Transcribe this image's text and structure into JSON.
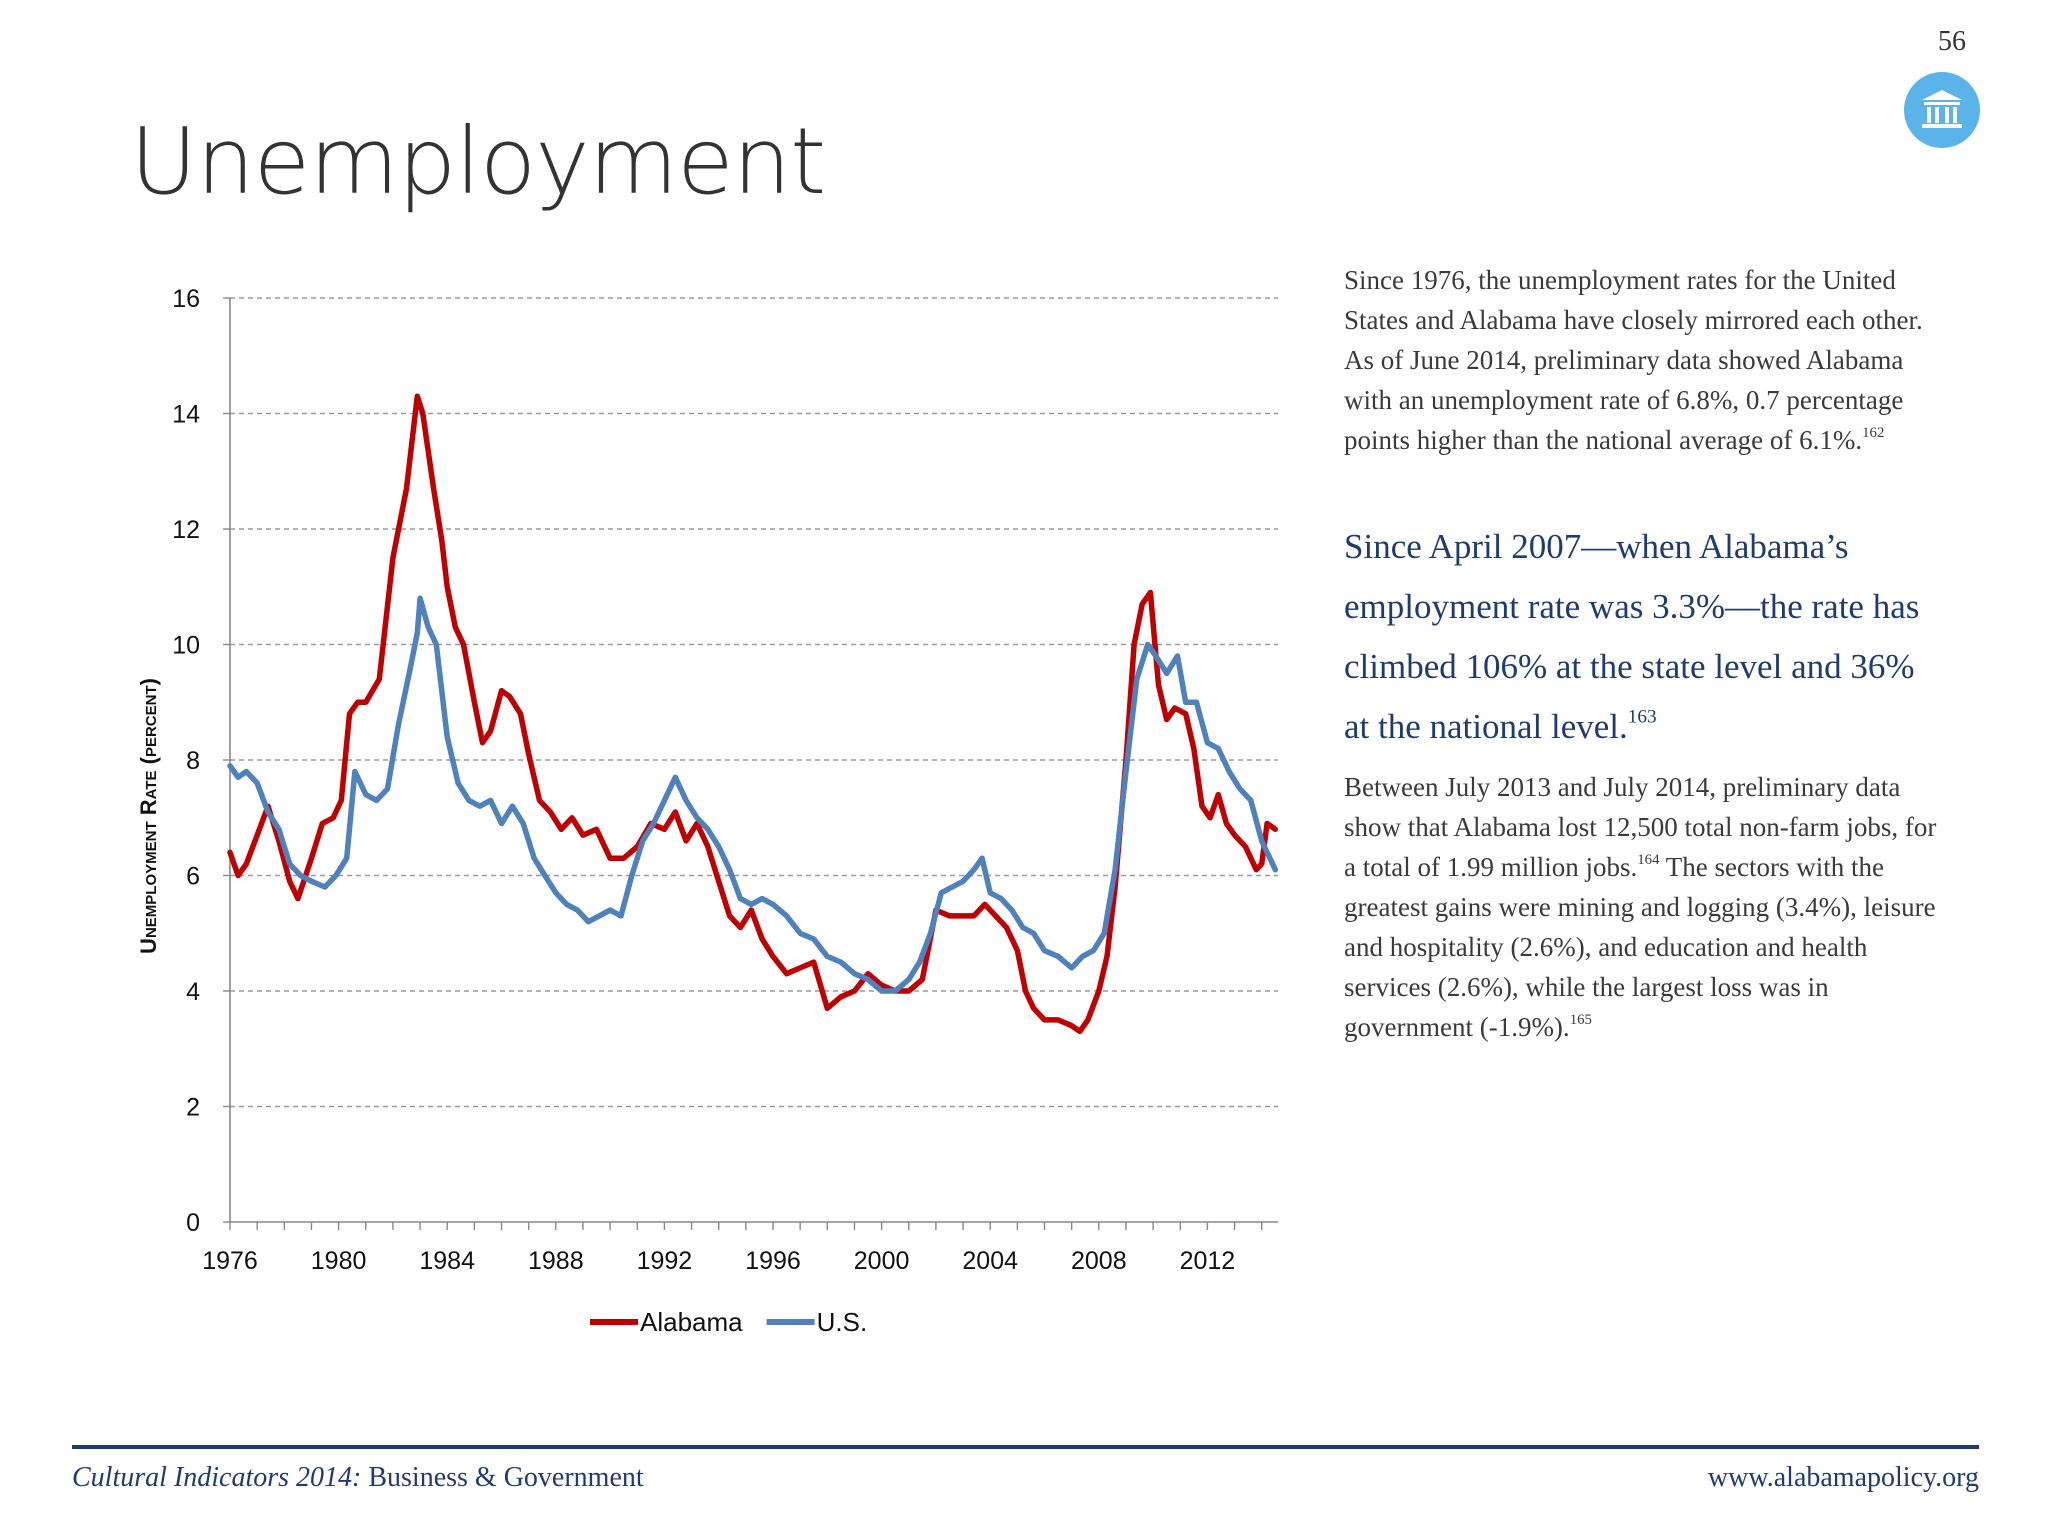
{
  "page": {
    "number": "56"
  },
  "title": "Unemployment",
  "text": {
    "intro": {
      "body": "Since 1976, the unemployment rates for the United States and Alabama have closely mirrored each other. As of June 2014, preliminary data showed Alabama with an unemployment rate of 6.8%, 0.7 percentage points higher than the national average of 6.1%.",
      "ref": "162"
    },
    "callout": {
      "body": "Since April 2007—when Alabama’s employment rate was 3.3%—the rate has climbed 106% at the state level and 36% at the national level.",
      "ref": "163"
    },
    "details": {
      "part1": "Between July 2013 and July 2014, preliminary data show that Alabama lost 12,500 total non-farm jobs, for a total of 1.99 million jobs.",
      "ref1": "164",
      "part2": " The sectors with the greatest gains were mining and logging (3.4%), leisure and hospitality (2.6%), and education and health services (2.6%), while the largest loss was in government (-1.9%).",
      "ref2": "165"
    }
  },
  "footer": {
    "publication": "Cultural Indicators 2014:",
    "section": " Business & Government",
    "url": "www.alabamapolicy.org"
  },
  "icons": {
    "logo": "capitol-building-icon"
  },
  "colors": {
    "alabama": "#c00000",
    "us": "#4f81bd",
    "logo": "#5ab4ea",
    "accent": "#1f3b72"
  },
  "chart_data": {
    "type": "line",
    "title": "",
    "ylabel": "Unemployment Rate (percent)",
    "xlabel": "",
    "xlim": [
      1976,
      2014.6
    ],
    "ylim": [
      0,
      16
    ],
    "y_ticks": [
      0,
      2,
      4,
      6,
      8,
      10,
      12,
      14,
      16
    ],
    "x_ticks": [
      1976,
      1980,
      1984,
      1988,
      1992,
      1996,
      2000,
      2004,
      2008,
      2012
    ],
    "grid": true,
    "legend": "bottom-center",
    "series": [
      {
        "name": "Alabama",
        "color": "#c00000",
        "points": [
          [
            1976.0,
            6.4
          ],
          [
            1976.3,
            6.0
          ],
          [
            1976.6,
            6.2
          ],
          [
            1977.0,
            6.7
          ],
          [
            1977.4,
            7.2
          ],
          [
            1977.8,
            6.6
          ],
          [
            1978.2,
            5.9
          ],
          [
            1978.5,
            5.6
          ],
          [
            1979.0,
            6.3
          ],
          [
            1979.4,
            6.9
          ],
          [
            1979.8,
            7.0
          ],
          [
            1980.1,
            7.3
          ],
          [
            1980.4,
            8.8
          ],
          [
            1980.7,
            9.0
          ],
          [
            1981.0,
            9.0
          ],
          [
            1981.5,
            9.4
          ],
          [
            1982.0,
            11.5
          ],
          [
            1982.5,
            12.7
          ],
          [
            1982.9,
            14.3
          ],
          [
            1983.1,
            14.0
          ],
          [
            1983.5,
            12.7
          ],
          [
            1983.8,
            11.8
          ],
          [
            1984.0,
            11.0
          ],
          [
            1984.3,
            10.3
          ],
          [
            1984.6,
            10.0
          ],
          [
            1985.0,
            9.0
          ],
          [
            1985.3,
            8.3
          ],
          [
            1985.6,
            8.5
          ],
          [
            1986.0,
            9.2
          ],
          [
            1986.3,
            9.1
          ],
          [
            1986.7,
            8.8
          ],
          [
            1987.0,
            8.1
          ],
          [
            1987.4,
            7.3
          ],
          [
            1987.8,
            7.1
          ],
          [
            1988.2,
            6.8
          ],
          [
            1988.6,
            7.0
          ],
          [
            1989.0,
            6.7
          ],
          [
            1989.5,
            6.8
          ],
          [
            1990.0,
            6.3
          ],
          [
            1990.5,
            6.3
          ],
          [
            1991.0,
            6.5
          ],
          [
            1991.5,
            6.9
          ],
          [
            1992.0,
            6.8
          ],
          [
            1992.4,
            7.1
          ],
          [
            1992.8,
            6.6
          ],
          [
            1993.2,
            6.9
          ],
          [
            1993.6,
            6.5
          ],
          [
            1994.0,
            5.9
          ],
          [
            1994.4,
            5.3
          ],
          [
            1994.8,
            5.1
          ],
          [
            1995.2,
            5.4
          ],
          [
            1995.6,
            4.9
          ],
          [
            1996.0,
            4.6
          ],
          [
            1996.5,
            4.3
          ],
          [
            1997.0,
            4.4
          ],
          [
            1997.5,
            4.5
          ],
          [
            1998.0,
            3.7
          ],
          [
            1998.5,
            3.9
          ],
          [
            1999.0,
            4.0
          ],
          [
            1999.5,
            4.3
          ],
          [
            2000.0,
            4.1
          ],
          [
            2000.5,
            4.0
          ],
          [
            2001.0,
            4.0
          ],
          [
            2001.5,
            4.2
          ],
          [
            2002.0,
            5.4
          ],
          [
            2002.5,
            5.3
          ],
          [
            2003.0,
            5.3
          ],
          [
            2003.4,
            5.3
          ],
          [
            2003.8,
            5.5
          ],
          [
            2004.2,
            5.3
          ],
          [
            2004.6,
            5.1
          ],
          [
            2005.0,
            4.7
          ],
          [
            2005.3,
            4.0
          ],
          [
            2005.6,
            3.7
          ],
          [
            2006.0,
            3.5
          ],
          [
            2006.5,
            3.5
          ],
          [
            2007.0,
            3.4
          ],
          [
            2007.3,
            3.3
          ],
          [
            2007.6,
            3.5
          ],
          [
            2008.0,
            4.0
          ],
          [
            2008.3,
            4.6
          ],
          [
            2008.6,
            5.8
          ],
          [
            2009.0,
            8.0
          ],
          [
            2009.3,
            10.0
          ],
          [
            2009.6,
            10.7
          ],
          [
            2009.9,
            10.9
          ],
          [
            2010.2,
            9.3
          ],
          [
            2010.5,
            8.7
          ],
          [
            2010.8,
            8.9
          ],
          [
            2011.2,
            8.8
          ],
          [
            2011.5,
            8.2
          ],
          [
            2011.8,
            7.2
          ],
          [
            2012.1,
            7.0
          ],
          [
            2012.4,
            7.4
          ],
          [
            2012.7,
            6.9
          ],
          [
            2013.0,
            6.7
          ],
          [
            2013.4,
            6.5
          ],
          [
            2013.8,
            6.1
          ],
          [
            2014.0,
            6.2
          ],
          [
            2014.2,
            6.9
          ],
          [
            2014.5,
            6.8
          ]
        ]
      },
      {
        "name": "U.S.",
        "color": "#4f81bd",
        "points": [
          [
            1976.0,
            7.9
          ],
          [
            1976.3,
            7.7
          ],
          [
            1976.6,
            7.8
          ],
          [
            1977.0,
            7.6
          ],
          [
            1977.4,
            7.1
          ],
          [
            1977.8,
            6.8
          ],
          [
            1978.2,
            6.2
          ],
          [
            1978.6,
            6.0
          ],
          [
            1979.0,
            5.9
          ],
          [
            1979.5,
            5.8
          ],
          [
            1979.9,
            6.0
          ],
          [
            1980.3,
            6.3
          ],
          [
            1980.6,
            7.8
          ],
          [
            1981.0,
            7.4
          ],
          [
            1981.4,
            7.3
          ],
          [
            1981.8,
            7.5
          ],
          [
            1982.2,
            8.6
          ],
          [
            1982.6,
            9.5
          ],
          [
            1982.9,
            10.2
          ],
          [
            1983.0,
            10.8
          ],
          [
            1983.3,
            10.3
          ],
          [
            1983.6,
            10.0
          ],
          [
            1984.0,
            8.4
          ],
          [
            1984.4,
            7.6
          ],
          [
            1984.8,
            7.3
          ],
          [
            1985.2,
            7.2
          ],
          [
            1985.6,
            7.3
          ],
          [
            1986.0,
            6.9
          ],
          [
            1986.4,
            7.2
          ],
          [
            1986.8,
            6.9
          ],
          [
            1987.2,
            6.3
          ],
          [
            1987.6,
            6.0
          ],
          [
            1988.0,
            5.7
          ],
          [
            1988.4,
            5.5
          ],
          [
            1988.8,
            5.4
          ],
          [
            1989.2,
            5.2
          ],
          [
            1989.6,
            5.3
          ],
          [
            1990.0,
            5.4
          ],
          [
            1990.4,
            5.3
          ],
          [
            1990.8,
            6.0
          ],
          [
            1991.2,
            6.6
          ],
          [
            1991.6,
            6.9
          ],
          [
            1992.0,
            7.3
          ],
          [
            1992.4,
            7.7
          ],
          [
            1992.8,
            7.3
          ],
          [
            1993.2,
            7.0
          ],
          [
            1993.6,
            6.8
          ],
          [
            1994.0,
            6.5
          ],
          [
            1994.4,
            6.1
          ],
          [
            1994.8,
            5.6
          ],
          [
            1995.2,
            5.5
          ],
          [
            1995.6,
            5.6
          ],
          [
            1996.0,
            5.5
          ],
          [
            1996.5,
            5.3
          ],
          [
            1997.0,
            5.0
          ],
          [
            1997.5,
            4.9
          ],
          [
            1998.0,
            4.6
          ],
          [
            1998.5,
            4.5
          ],
          [
            1999.0,
            4.3
          ],
          [
            1999.5,
            4.2
          ],
          [
            2000.0,
            4.0
          ],
          [
            2000.5,
            4.0
          ],
          [
            2001.0,
            4.2
          ],
          [
            2001.4,
            4.5
          ],
          [
            2001.8,
            5.0
          ],
          [
            2002.2,
            5.7
          ],
          [
            2002.6,
            5.8
          ],
          [
            2003.0,
            5.9
          ],
          [
            2003.4,
            6.1
          ],
          [
            2003.7,
            6.3
          ],
          [
            2004.0,
            5.7
          ],
          [
            2004.4,
            5.6
          ],
          [
            2004.8,
            5.4
          ],
          [
            2005.2,
            5.1
          ],
          [
            2005.6,
            5.0
          ],
          [
            2006.0,
            4.7
          ],
          [
            2006.5,
            4.6
          ],
          [
            2007.0,
            4.4
          ],
          [
            2007.4,
            4.6
          ],
          [
            2007.8,
            4.7
          ],
          [
            2008.2,
            5.0
          ],
          [
            2008.6,
            6.1
          ],
          [
            2009.0,
            7.8
          ],
          [
            2009.4,
            9.4
          ],
          [
            2009.8,
            10.0
          ],
          [
            2010.1,
            9.8
          ],
          [
            2010.5,
            9.5
          ],
          [
            2010.9,
            9.8
          ],
          [
            2011.2,
            9.0
          ],
          [
            2011.6,
            9.0
          ],
          [
            2012.0,
            8.3
          ],
          [
            2012.4,
            8.2
          ],
          [
            2012.8,
            7.8
          ],
          [
            2013.2,
            7.5
          ],
          [
            2013.6,
            7.3
          ],
          [
            2014.0,
            6.6
          ],
          [
            2014.3,
            6.3
          ],
          [
            2014.5,
            6.1
          ]
        ]
      }
    ]
  }
}
